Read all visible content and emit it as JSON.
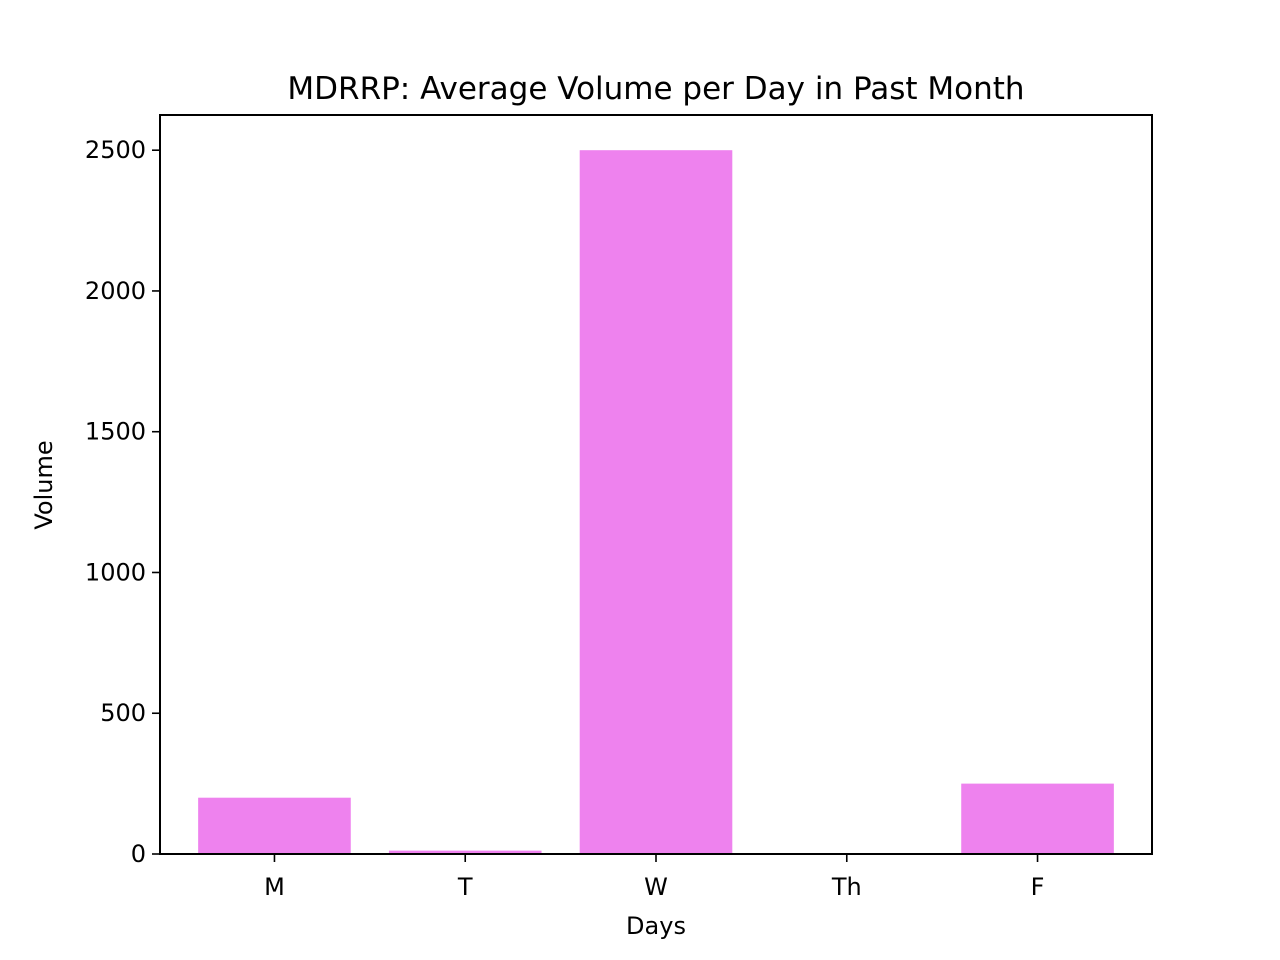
{
  "chart_data": {
    "type": "bar",
    "title": "MDRRP: Average Volume per Day in Past Month",
    "xlabel": "Days",
    "ylabel": "Volume",
    "categories": [
      "M",
      "T",
      "W",
      "Th",
      "F"
    ],
    "values": [
      200,
      12,
      2500,
      0,
      250
    ],
    "ylim": [
      0,
      2625
    ],
    "yticks": [
      0,
      500,
      1000,
      1500,
      2000,
      2500
    ],
    "bar_color": "#EE82EE",
    "grid": false,
    "legend": "none"
  }
}
